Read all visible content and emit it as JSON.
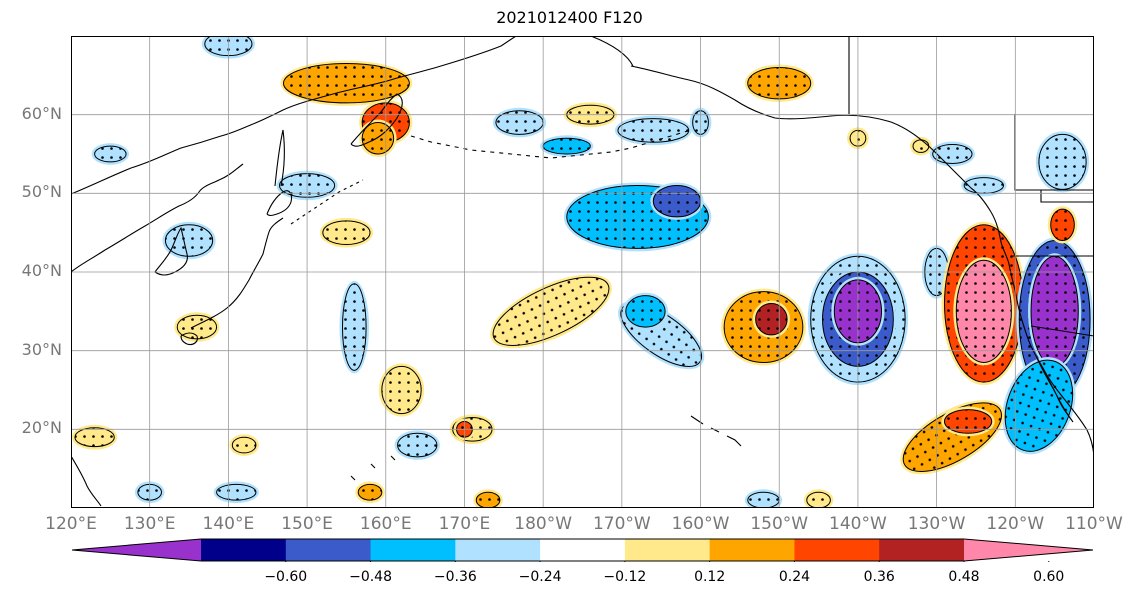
{
  "title": "2021012400 F120",
  "lat_labels": [
    {
      "text": "60°N",
      "lat": 60
    },
    {
      "text": "50°N",
      "lat": 50
    },
    {
      "text": "40°N",
      "lat": 40
    },
    {
      "text": "30°N",
      "lat": 30
    },
    {
      "text": "20°N",
      "lat": 20
    }
  ],
  "lon_labels": [
    "120°E",
    "130°E",
    "140°E",
    "150°E",
    "160°E",
    "170°E",
    "180°W",
    "170°W",
    "160°W",
    "150°W",
    "140°W",
    "130°W",
    "120°W",
    "110°W"
  ],
  "extent": {
    "lon_min": 120,
    "lon_max": 250,
    "lat_min": 10,
    "lat_max": 70
  },
  "colorbar": {
    "ticks": [
      "−0.60",
      "−0.48",
      "−0.36",
      "−0.24",
      "−0.12",
      "0.12",
      "0.24",
      "0.36",
      "0.48",
      "0.60"
    ],
    "colors": [
      "#9932CC",
      "#00008B",
      "#3A5BC9",
      "#00BFFF",
      "#B0E2FF",
      "#FFFFFF",
      "#FFE98A",
      "#FFA500",
      "#FF4500",
      "#B22222",
      "#FF88AA"
    ]
  },
  "anomaly_regions": [
    {
      "lon": 135,
      "lat": 44,
      "level": -1,
      "r": [
        3.0,
        2.0
      ]
    },
    {
      "lon": 136,
      "lat": 33,
      "level": 1,
      "r": [
        2.5,
        1.5
      ]
    },
    {
      "lon": 140,
      "lat": 69,
      "level": -1,
      "r": [
        3.0,
        1.5
      ]
    },
    {
      "lon": 125,
      "lat": 55,
      "level": -1,
      "r": [
        2.0,
        1.0
      ]
    },
    {
      "lon": 155,
      "lat": 64,
      "level": 2,
      "r": [
        8.0,
        2.5
      ]
    },
    {
      "lon": 160,
      "lat": 59,
      "level": 3,
      "r": [
        3.0,
        2.5
      ]
    },
    {
      "lon": 159,
      "lat": 57,
      "level": 2,
      "r": [
        2.0,
        2.0
      ]
    },
    {
      "lon": 150,
      "lat": 51,
      "level": -1,
      "r": [
        3.5,
        1.5
      ]
    },
    {
      "lon": 155,
      "lat": 45,
      "level": 1,
      "r": [
        3.0,
        1.5
      ]
    },
    {
      "lon": 156,
      "lat": 33,
      "level": -1,
      "r": [
        1.5,
        5.5
      ]
    },
    {
      "lon": 162,
      "lat": 25,
      "level": 1,
      "r": [
        2.5,
        3.0
      ]
    },
    {
      "lon": 164,
      "lat": 18,
      "level": -1,
      "r": [
        2.5,
        1.5
      ]
    },
    {
      "lon": 171,
      "lat": 20,
      "level": 1,
      "r": [
        2.5,
        1.5
      ]
    },
    {
      "lon": 170,
      "lat": 20,
      "level": 3,
      "r": [
        1.0,
        1.0
      ]
    },
    {
      "lon": 177,
      "lat": 59,
      "level": -1,
      "r": [
        3.0,
        1.5
      ]
    },
    {
      "lon": 186,
      "lat": 60,
      "level": 1,
      "r": [
        3.0,
        1.2
      ]
    },
    {
      "lon": 183,
      "lat": 56,
      "level": -2,
      "r": [
        3.0,
        1.0
      ]
    },
    {
      "lon": 194,
      "lat": 58,
      "level": -1,
      "r": [
        4.5,
        1.5
      ]
    },
    {
      "lon": 181,
      "lat": 35,
      "level": 1,
      "r": [
        8.0,
        3.0
      ],
      "rot": -25
    },
    {
      "lon": 192,
      "lat": 47,
      "level": -2,
      "r": [
        9.0,
        4.0
      ]
    },
    {
      "lon": 197,
      "lat": 49,
      "level": -3,
      "r": [
        3.0,
        2.0
      ]
    },
    {
      "lon": 195,
      "lat": 32,
      "level": -1,
      "r": [
        6.0,
        2.5
      ],
      "rot": 35
    },
    {
      "lon": 193,
      "lat": 35,
      "level": -2,
      "r": [
        2.5,
        2.0
      ]
    },
    {
      "lon": 210,
      "lat": 64,
      "level": 2,
      "r": [
        4.0,
        2.0
      ]
    },
    {
      "lon": 208,
      "lat": 33,
      "level": 2,
      "r": [
        5.0,
        4.5
      ]
    },
    {
      "lon": 209,
      "lat": 34,
      "level": 4,
      "r": [
        2.0,
        2.0
      ]
    },
    {
      "lon": 220,
      "lat": 34,
      "level": -1,
      "r": [
        6.0,
        8.0
      ]
    },
    {
      "lon": 220,
      "lat": 34,
      "level": -3,
      "r": [
        4.5,
        6.0
      ]
    },
    {
      "lon": 220,
      "lat": 35,
      "level": -5,
      "r": [
        3.0,
        4.0
      ]
    },
    {
      "lon": 230,
      "lat": 40,
      "level": -1,
      "r": [
        1.5,
        3.0
      ]
    },
    {
      "lon": 236,
      "lat": 36,
      "level": 3,
      "r": [
        5.0,
        10.0
      ]
    },
    {
      "lon": 236,
      "lat": 35,
      "level": 5,
      "r": [
        3.5,
        6.5
      ]
    },
    {
      "lon": 245,
      "lat": 34,
      "level": -3,
      "r": [
        4.5,
        10.0
      ]
    },
    {
      "lon": 245,
      "lat": 35,
      "level": -5,
      "r": [
        3.0,
        7.0
      ]
    },
    {
      "lon": 243,
      "lat": 23,
      "level": -2,
      "r": [
        4.0,
        6.0
      ],
      "rot": 20
    },
    {
      "lon": 232,
      "lat": 19,
      "level": 2,
      "r": [
        7.0,
        3.0
      ],
      "rot": -30
    },
    {
      "lon": 234,
      "lat": 21,
      "level": 3,
      "r": [
        3.0,
        1.5
      ]
    },
    {
      "lon": 246,
      "lat": 54,
      "level": -1,
      "r": [
        3.0,
        3.5
      ]
    },
    {
      "lon": 236,
      "lat": 51,
      "level": -1,
      "r": [
        2.5,
        1.0
      ]
    },
    {
      "lon": 246,
      "lat": 46,
      "level": 3,
      "r": [
        1.5,
        2.0
      ]
    },
    {
      "lon": 123,
      "lat": 19,
      "level": 1,
      "r": [
        2.5,
        1.2
      ]
    },
    {
      "lon": 130,
      "lat": 12,
      "level": -1,
      "r": [
        1.5,
        1.0
      ]
    },
    {
      "lon": 141,
      "lat": 12,
      "level": -1,
      "r": [
        2.5,
        1.0
      ]
    },
    {
      "lon": 142,
      "lat": 18,
      "level": 1,
      "r": [
        1.5,
        1.0
      ]
    },
    {
      "lon": 158,
      "lat": 12,
      "level": 2,
      "r": [
        1.5,
        1.0
      ]
    },
    {
      "lon": 173,
      "lat": 11,
      "level": 2,
      "r": [
        1.5,
        1.0
      ]
    },
    {
      "lon": 208,
      "lat": 11,
      "level": -1,
      "r": [
        2.0,
        1.0
      ]
    },
    {
      "lon": 215,
      "lat": 11,
      "level": 1,
      "r": [
        1.5,
        1.0
      ]
    },
    {
      "lon": 220,
      "lat": 57,
      "level": 1,
      "r": [
        1.0,
        1.0
      ]
    },
    {
      "lon": 200,
      "lat": 59,
      "level": -1,
      "r": [
        1.0,
        1.5
      ]
    },
    {
      "lon": 228,
      "lat": 56,
      "level": 1,
      "r": [
        1.0,
        0.8
      ]
    },
    {
      "lon": 232,
      "lat": 55,
      "level": -1,
      "r": [
        2.5,
        1.2
      ]
    }
  ]
}
